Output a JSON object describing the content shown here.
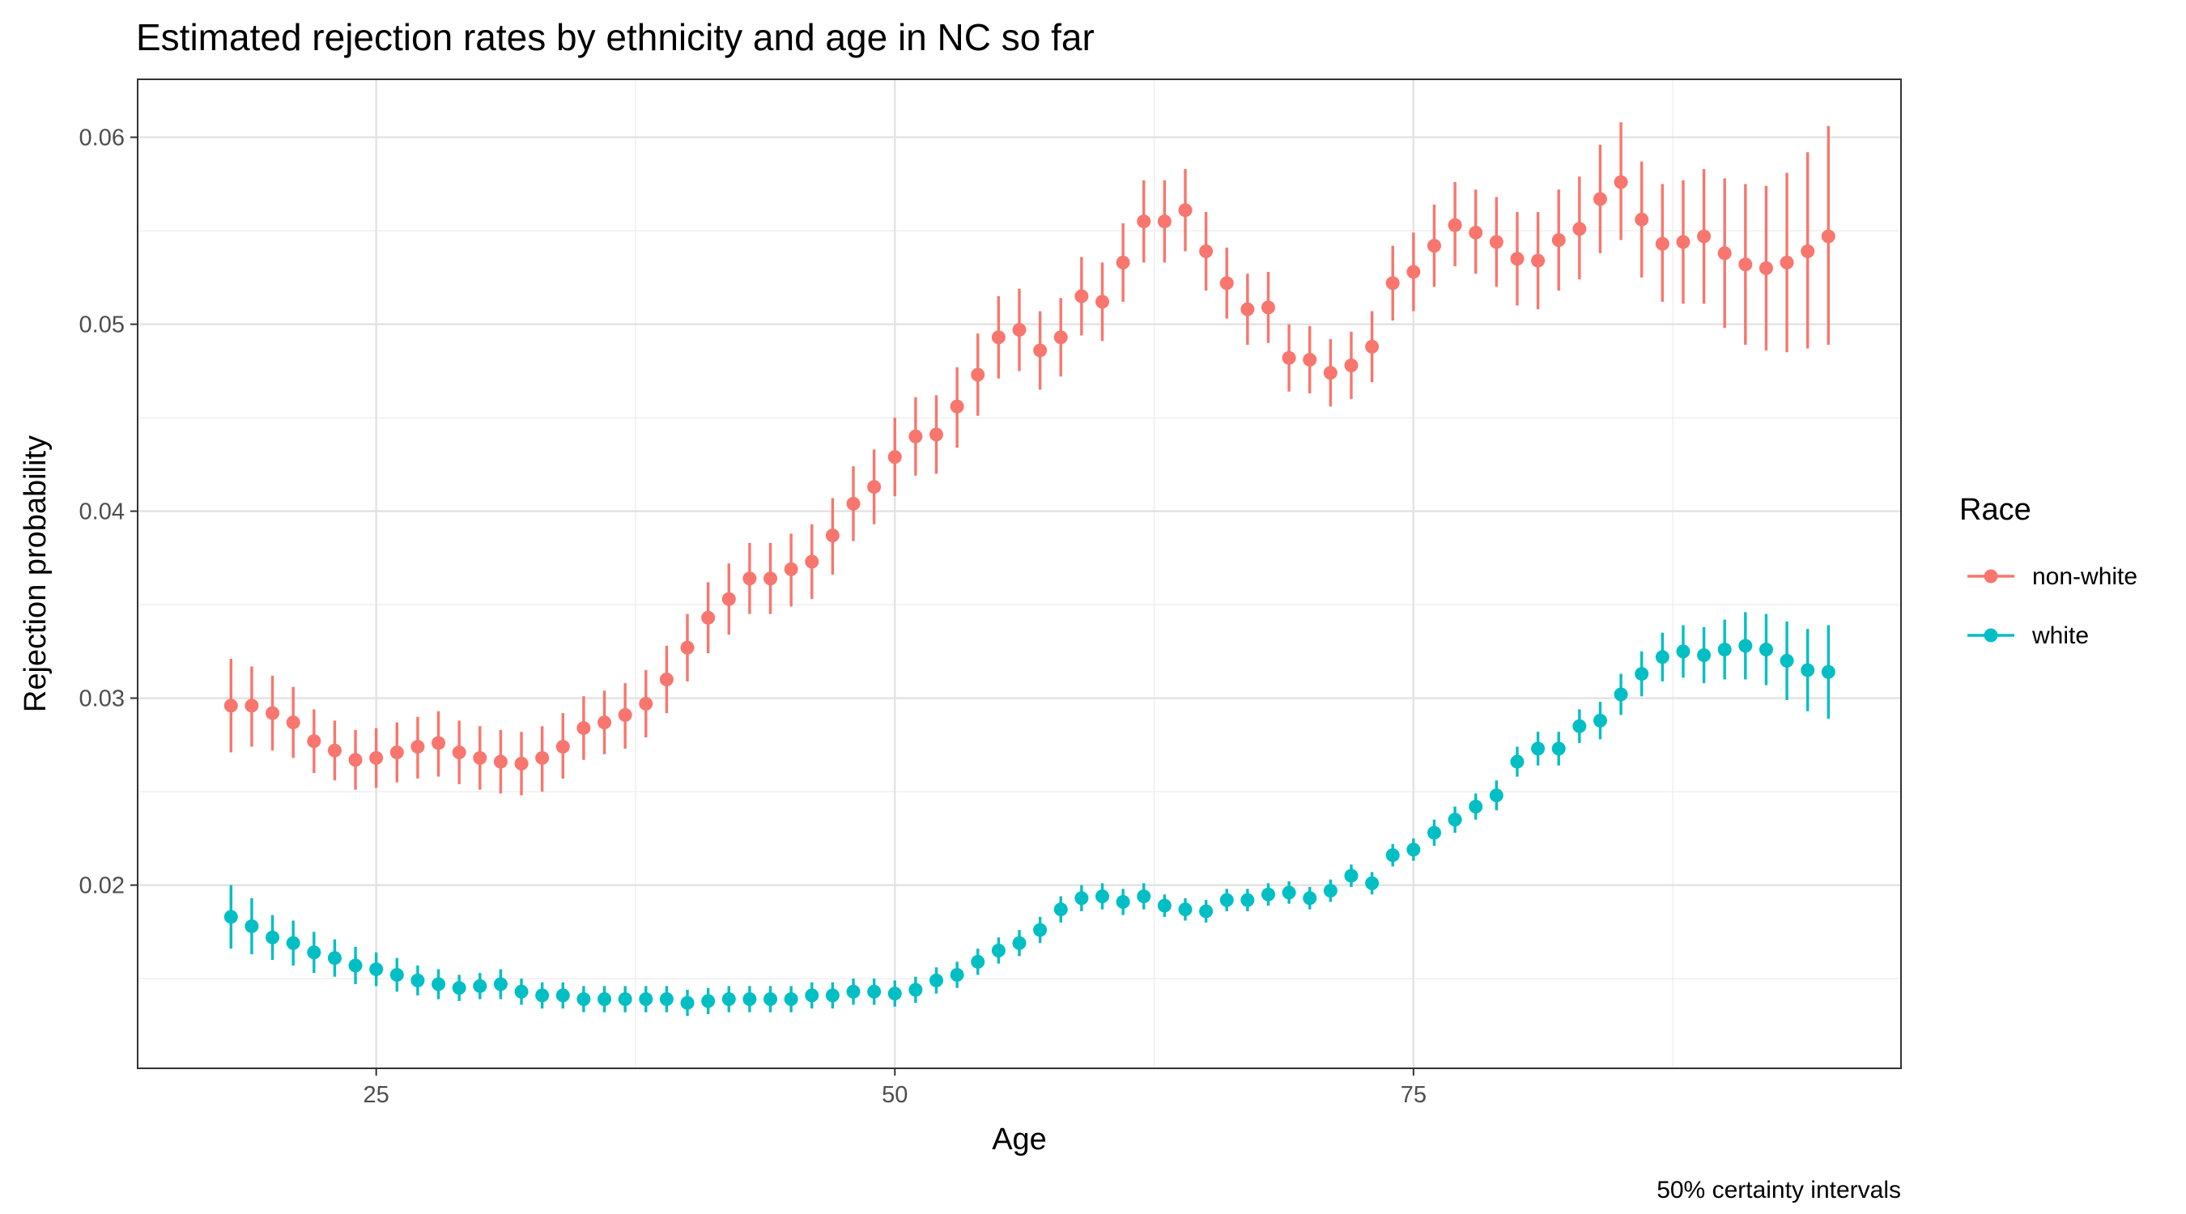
{
  "chart_data": {
    "type": "scatter",
    "title": "Estimated rejection rates by ethnicity and age in NC so far",
    "xlabel": "Age",
    "ylabel": "Rejection probability",
    "caption": "50% certainty intervals",
    "xlim": [
      13.5,
      98.5
    ],
    "ylim": [
      0.0102,
      0.0631
    ],
    "xticks": [
      25,
      50,
      75
    ],
    "xtick_labels": [
      "25",
      "50",
      "75"
    ],
    "yticks": [
      0.02,
      0.03,
      0.04,
      0.05,
      0.06
    ],
    "ytick_labels": [
      "0.02",
      "0.03",
      "0.04",
      "0.05",
      "0.06"
    ],
    "grid": true,
    "legend": {
      "title": "Race",
      "position": "right"
    },
    "error_bars": "50% certainty intervals",
    "x": [
      18,
      19,
      20,
      21,
      22,
      23,
      24,
      25,
      26,
      27,
      28,
      29,
      30,
      31,
      32,
      33,
      34,
      35,
      36,
      37,
      38,
      39,
      40,
      41,
      42,
      43,
      44,
      45,
      46,
      47,
      48,
      49,
      50,
      51,
      52,
      53,
      54,
      55,
      56,
      57,
      58,
      59,
      60,
      61,
      62,
      63,
      64,
      65,
      66,
      67,
      68,
      69,
      70,
      71,
      72,
      73,
      74,
      75,
      76,
      77,
      78,
      79,
      80,
      81,
      82,
      83,
      84,
      85,
      86,
      87,
      88,
      89,
      90,
      91,
      92,
      93,
      94,
      95
    ],
    "series": [
      {
        "name": "non-white",
        "color": "#F8766D",
        "values": [
          0.0296,
          0.0296,
          0.0292,
          0.0287,
          0.0277,
          0.0272,
          0.0267,
          0.0268,
          0.0271,
          0.0274,
          0.0276,
          0.0271,
          0.0268,
          0.0266,
          0.0265,
          0.0268,
          0.0274,
          0.0284,
          0.0287,
          0.0291,
          0.0297,
          0.031,
          0.0327,
          0.0343,
          0.0353,
          0.0364,
          0.0364,
          0.0369,
          0.0373,
          0.0387,
          0.0404,
          0.0413,
          0.0429,
          0.044,
          0.0441,
          0.0456,
          0.0473,
          0.0493,
          0.0497,
          0.0486,
          0.0493,
          0.0515,
          0.0512,
          0.0533,
          0.0555,
          0.0555,
          0.0561,
          0.0539,
          0.0522,
          0.0508,
          0.0509,
          0.0482,
          0.0481,
          0.0474,
          0.0478,
          0.0488,
          0.0522,
          0.0528,
          0.0542,
          0.0553,
          0.0549,
          0.0544,
          0.0535,
          0.0534,
          0.0545,
          0.0551,
          0.0567,
          0.0576,
          0.0556,
          0.0543,
          0.0544,
          0.0547,
          0.0538,
          0.0532,
          0.053,
          0.0533,
          0.0539,
          0.0547
        ],
        "lower": [
          0.0271,
          0.0274,
          0.0272,
          0.0268,
          0.026,
          0.0256,
          0.0251,
          0.0252,
          0.0255,
          0.0257,
          0.0258,
          0.0254,
          0.0251,
          0.0249,
          0.0248,
          0.025,
          0.0257,
          0.0267,
          0.027,
          0.0273,
          0.0279,
          0.0292,
          0.0309,
          0.0324,
          0.0334,
          0.0345,
          0.0345,
          0.0349,
          0.0353,
          0.0366,
          0.0384,
          0.0393,
          0.0408,
          0.0419,
          0.042,
          0.0434,
          0.0451,
          0.0471,
          0.0475,
          0.0465,
          0.0472,
          0.0494,
          0.0491,
          0.0512,
          0.0533,
          0.0533,
          0.0539,
          0.0518,
          0.0503,
          0.0489,
          0.049,
          0.0464,
          0.0463,
          0.0456,
          0.046,
          0.0469,
          0.0502,
          0.0507,
          0.052,
          0.0531,
          0.0527,
          0.052,
          0.051,
          0.0508,
          0.0518,
          0.0524,
          0.0538,
          0.0545,
          0.0525,
          0.0512,
          0.0511,
          0.0511,
          0.0498,
          0.0489,
          0.0486,
          0.0485,
          0.0487,
          0.0489
        ],
        "upper": [
          0.0321,
          0.0317,
          0.0312,
          0.0306,
          0.0294,
          0.0288,
          0.0283,
          0.0284,
          0.0287,
          0.029,
          0.0293,
          0.0288,
          0.0285,
          0.0283,
          0.0282,
          0.0285,
          0.0292,
          0.0301,
          0.0304,
          0.0308,
          0.0315,
          0.0328,
          0.0345,
          0.0362,
          0.0372,
          0.0383,
          0.0383,
          0.0388,
          0.0393,
          0.0407,
          0.0424,
          0.0433,
          0.045,
          0.0461,
          0.0462,
          0.0477,
          0.0495,
          0.0515,
          0.0519,
          0.0507,
          0.0514,
          0.0536,
          0.0533,
          0.0554,
          0.0577,
          0.0577,
          0.0583,
          0.056,
          0.0541,
          0.0527,
          0.0528,
          0.05,
          0.0499,
          0.0492,
          0.0496,
          0.0507,
          0.0542,
          0.0549,
          0.0564,
          0.0576,
          0.0572,
          0.0568,
          0.056,
          0.056,
          0.0572,
          0.0579,
          0.0596,
          0.0608,
          0.0587,
          0.0575,
          0.0577,
          0.0583,
          0.0578,
          0.0575,
          0.0574,
          0.0581,
          0.0592,
          0.0606
        ]
      },
      {
        "name": "white",
        "color": "#00BFC4",
        "values": [
          0.0183,
          0.0178,
          0.0172,
          0.0169,
          0.0164,
          0.0161,
          0.0157,
          0.0155,
          0.0152,
          0.0149,
          0.0147,
          0.0145,
          0.0146,
          0.0147,
          0.0143,
          0.0141,
          0.0141,
          0.0139,
          0.0139,
          0.0139,
          0.0139,
          0.0139,
          0.0137,
          0.0138,
          0.0139,
          0.0139,
          0.0139,
          0.0139,
          0.0141,
          0.0141,
          0.0143,
          0.0143,
          0.0142,
          0.0144,
          0.0149,
          0.0152,
          0.0159,
          0.0165,
          0.0169,
          0.0176,
          0.0187,
          0.0193,
          0.0194,
          0.0191,
          0.0194,
          0.0189,
          0.0187,
          0.0186,
          0.0192,
          0.0192,
          0.0195,
          0.0196,
          0.0193,
          0.0197,
          0.0205,
          0.0201,
          0.0216,
          0.0219,
          0.0228,
          0.0235,
          0.0242,
          0.0248,
          0.0266,
          0.0273,
          0.0273,
          0.0285,
          0.0288,
          0.0302,
          0.0313,
          0.0322,
          0.0325,
          0.0323,
          0.0326,
          0.0328,
          0.0326,
          0.032,
          0.0315,
          0.0314
        ],
        "lower": [
          0.0166,
          0.0163,
          0.016,
          0.0157,
          0.0153,
          0.0151,
          0.0147,
          0.0146,
          0.0143,
          0.0141,
          0.0139,
          0.0138,
          0.0139,
          0.0139,
          0.0136,
          0.0134,
          0.0134,
          0.0132,
          0.0132,
          0.0132,
          0.0132,
          0.0132,
          0.013,
          0.0131,
          0.0132,
          0.0132,
          0.0132,
          0.0132,
          0.0134,
          0.0134,
          0.0136,
          0.0136,
          0.0135,
          0.0137,
          0.0142,
          0.0145,
          0.0152,
          0.0158,
          0.0162,
          0.0169,
          0.018,
          0.0186,
          0.0187,
          0.0184,
          0.0187,
          0.0183,
          0.0181,
          0.018,
          0.0186,
          0.0186,
          0.0189,
          0.019,
          0.0187,
          0.0191,
          0.0199,
          0.0195,
          0.021,
          0.0213,
          0.0221,
          0.0228,
          0.0235,
          0.024,
          0.0258,
          0.0264,
          0.0264,
          0.0276,
          0.0278,
          0.0291,
          0.0301,
          0.0309,
          0.0311,
          0.0308,
          0.031,
          0.031,
          0.0307,
          0.0299,
          0.0293,
          0.0289
        ],
        "upper": [
          0.02,
          0.0193,
          0.0184,
          0.0181,
          0.0175,
          0.0171,
          0.0167,
          0.0164,
          0.0161,
          0.0157,
          0.0155,
          0.0152,
          0.0153,
          0.0155,
          0.015,
          0.0148,
          0.0148,
          0.0146,
          0.0146,
          0.0146,
          0.0146,
          0.0146,
          0.0144,
          0.0145,
          0.0146,
          0.0146,
          0.0146,
          0.0146,
          0.0148,
          0.0148,
          0.015,
          0.015,
          0.0149,
          0.0151,
          0.0156,
          0.0159,
          0.0166,
          0.0172,
          0.0176,
          0.0183,
          0.0194,
          0.02,
          0.0201,
          0.0198,
          0.0201,
          0.0195,
          0.0193,
          0.0192,
          0.0198,
          0.0198,
          0.0201,
          0.0202,
          0.0199,
          0.0203,
          0.0211,
          0.0207,
          0.0222,
          0.0225,
          0.0235,
          0.0242,
          0.0249,
          0.0256,
          0.0274,
          0.0282,
          0.0282,
          0.0294,
          0.0298,
          0.0313,
          0.0325,
          0.0335,
          0.0339,
          0.0338,
          0.0342,
          0.0346,
          0.0345,
          0.0341,
          0.0337,
          0.0339
        ]
      }
    ]
  }
}
